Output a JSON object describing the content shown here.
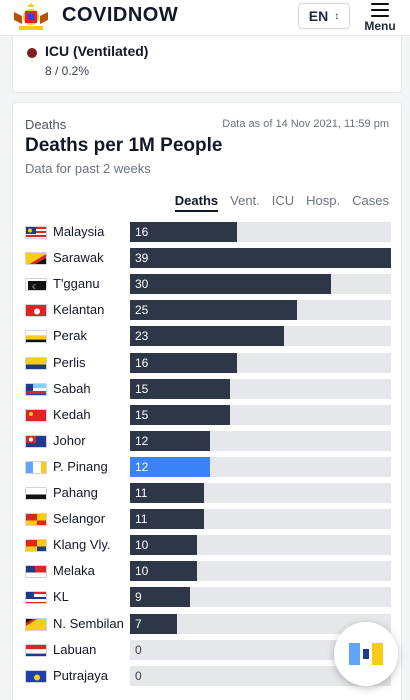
{
  "header": {
    "brand": "COVIDNOW",
    "language": "EN",
    "menu_label": "Menu",
    "logo_icon": "malaysia-coat-of-arms-icon"
  },
  "icu_card": {
    "title": "ICU (Ventilated)",
    "value": "8 / 0.2%",
    "dot_color": "#7f1d1d"
  },
  "deaths_card": {
    "section_label": "Deaths",
    "as_of": "Data as of 14 Nov 2021, 11:59 pm",
    "title": "Deaths per 1M People",
    "subtitle": "Data for past 2 weeks",
    "tabs": [
      "Deaths",
      "Vent.",
      "ICU",
      "Hosp.",
      "Cases"
    ],
    "active_tab": "Deaths"
  },
  "colors": {
    "bar": "#2d3748",
    "highlight": "#3b82f6",
    "track": "#e5e7eb"
  },
  "chart_data": {
    "type": "bar",
    "orientation": "horizontal",
    "max": 39,
    "categories": [
      "Malaysia",
      "Sarawak",
      "T'gganu",
      "Kelantan",
      "Perak",
      "Perlis",
      "Sabah",
      "Kedah",
      "Johor",
      "P. Pinang",
      "Pahang",
      "Selangor",
      "Klang Vly.",
      "Melaka",
      "KL",
      "N. Sembilan",
      "Labuan",
      "Putrajaya"
    ],
    "values": [
      16,
      39,
      30,
      25,
      23,
      16,
      15,
      15,
      12,
      12,
      11,
      11,
      10,
      10,
      9,
      7,
      0,
      0
    ],
    "highlighted": "P. Pinang"
  }
}
